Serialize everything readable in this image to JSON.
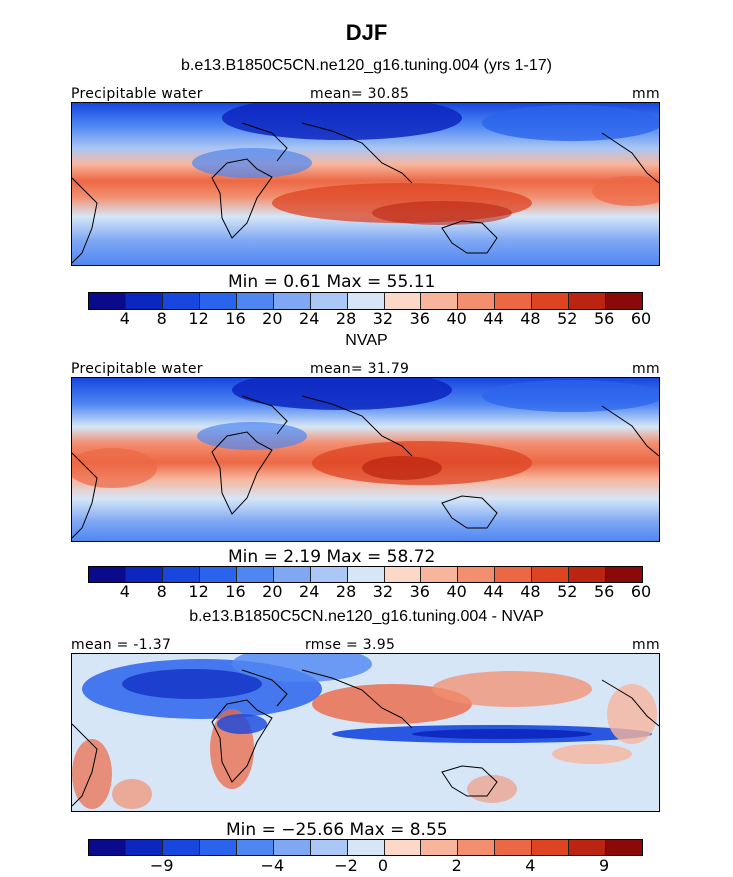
{
  "figure": {
    "season": "DJF"
  },
  "panels": [
    {
      "title": "b.e13.B1850C5CN.ne120_g16.tuning.004 (yrs 1-17)",
      "left_label": "Precipitable water",
      "center_label": "mean=  30.85",
      "right_label": "mm",
      "range_text": "Min =    0.61  Max =   55.11",
      "colorbar_ticks": [
        "4",
        "8",
        "12",
        "16",
        "20",
        "24",
        "28",
        "32",
        "36",
        "40",
        "44",
        "48",
        "52",
        "56",
        "60"
      ]
    },
    {
      "title": "NVAP",
      "left_label": "Precipitable water",
      "center_label": "mean=  31.79",
      "right_label": "mm",
      "range_text": "Min =    2.19  Max =   58.72",
      "colorbar_ticks": [
        "4",
        "8",
        "12",
        "16",
        "20",
        "24",
        "28",
        "32",
        "36",
        "40",
        "44",
        "48",
        "52",
        "56",
        "60"
      ]
    },
    {
      "title": "b.e13.B1850C5CN.ne120_g16.tuning.004 - NVAP",
      "left_label": "mean =  -1.37",
      "center_label": "rmse =   3.95",
      "right_label": "mm",
      "range_text": "Min = −25.66  Max =    8.55",
      "colorbar_ticks": [
        "−9",
        "−4",
        "−2",
        "0",
        "2",
        "4",
        "9"
      ]
    }
  ],
  "colors": {
    "scale": [
      "#0a0a8a",
      "#0c26c0",
      "#1747df",
      "#2b64ec",
      "#4f87f2",
      "#7fa8f4",
      "#aac7f5",
      "#d6e6f7",
      "#fbd8c8",
      "#f8b59c",
      "#f38f6f",
      "#ec6845",
      "#de4322",
      "#bb2410",
      "#8a0a0a"
    ]
  },
  "chart_data": [
    {
      "type": "heatmap",
      "title": "b.e13.B1850C5CN.ne120_g16.tuning.004 (yrs 1-17)",
      "variable": "Precipitable water",
      "units": "mm",
      "mean": 30.85,
      "min": 0.61,
      "max": 55.11,
      "contour_levels": [
        4,
        8,
        12,
        16,
        20,
        24,
        28,
        32,
        36,
        40,
        44,
        48,
        52,
        56,
        60
      ]
    },
    {
      "type": "heatmap",
      "title": "NVAP",
      "variable": "Precipitable water",
      "units": "mm",
      "mean": 31.79,
      "min": 2.19,
      "max": 58.72,
      "contour_levels": [
        4,
        8,
        12,
        16,
        20,
        24,
        28,
        32,
        36,
        40,
        44,
        48,
        52,
        56,
        60
      ]
    },
    {
      "type": "heatmap",
      "title": "b.e13.B1850C5CN.ne120_g16.tuning.004 - NVAP",
      "units": "mm",
      "mean": -1.37,
      "rmse": 3.95,
      "min": -25.66,
      "max": 8.55,
      "contour_levels": [
        -9,
        -4,
        -2,
        0,
        2,
        4,
        9
      ]
    }
  ]
}
